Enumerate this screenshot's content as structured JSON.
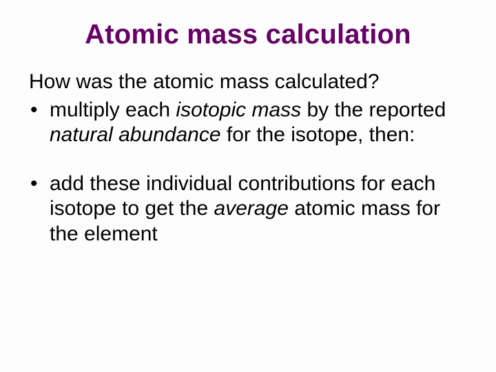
{
  "title": "Atomic mass calculation",
  "lead": "How was the atomic mass calculated?",
  "bullet1": {
    "p1": "multiply each ",
    "em1": "isotopic mass",
    "p2": " by the reported ",
    "em2": "natural abundance",
    "p3": " for the isotope, then:"
  },
  "bullet2": {
    "p1": "add these individual contributions for each isotope to get the ",
    "em1": "average",
    "p2": " atomic mass for the element"
  },
  "colors": {
    "title": "#660066",
    "body_text": "#000000",
    "background": "#fdfdfd"
  },
  "fonts": {
    "title_size_pt": 40,
    "body_size_pt": 30,
    "family": "Arial"
  }
}
